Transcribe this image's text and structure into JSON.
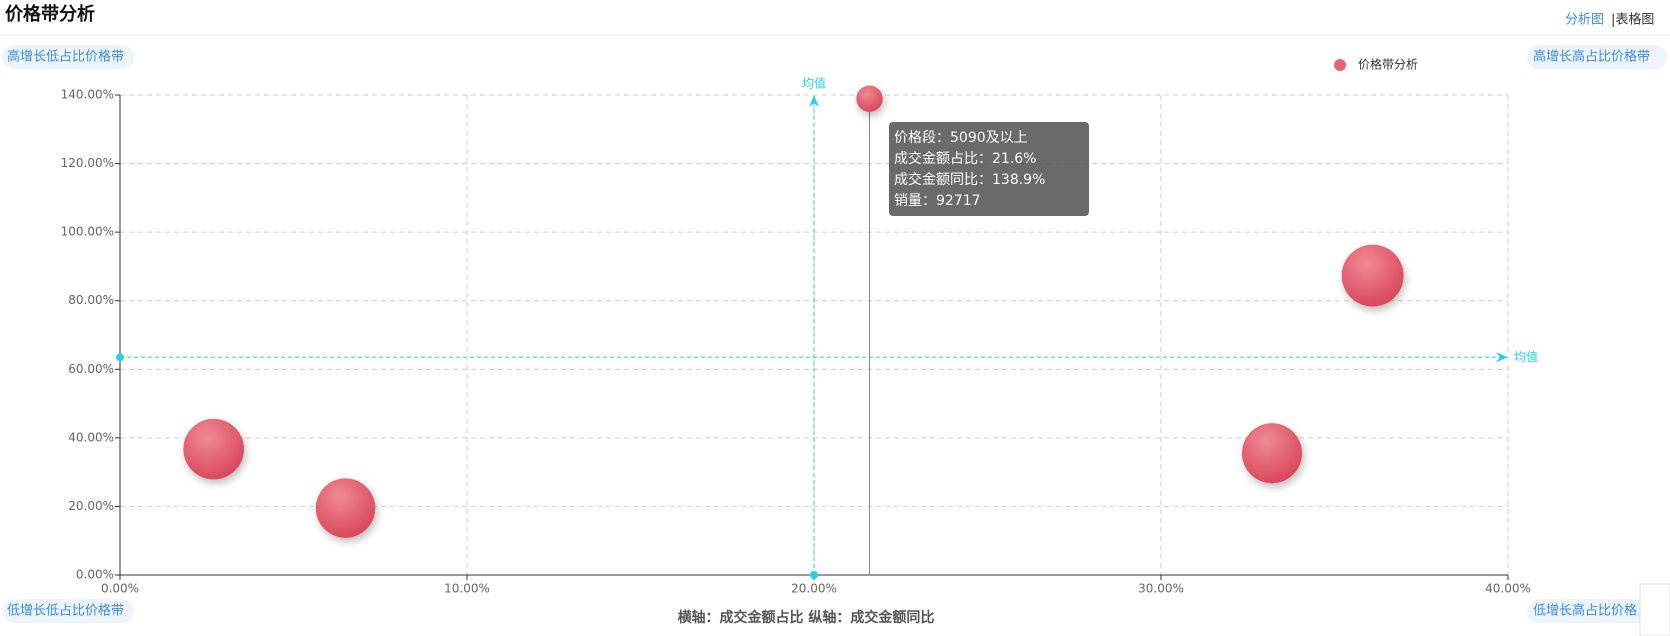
{
  "chart_data": {
    "type": "scatter",
    "title": "价格带分析",
    "tabs": [
      "分析图",
      "|表格图"
    ],
    "corner_labels": {
      "top_left": "高增长低占比价格带",
      "top_right": "高增长高占比价格带",
      "bottom_left": "低增长低占比价格带",
      "bottom_right": "低增长高占比价格"
    },
    "axis_caption": "横轴：成交金额占比  纵轴：成交金额同比",
    "series": [
      {
        "name": "价格带分析",
        "color": "#e8636f",
        "x": [
          2.7,
          6.5,
          21.6,
          33.2,
          36.1
        ],
        "values": [
          36.7,
          19.5,
          138.9,
          35.5,
          87.3
        ],
        "sizes": [
          500000,
          480000,
          92717,
          490000,
          520000
        ]
      }
    ],
    "xlim": [
      0,
      40
    ],
    "ylim": [
      0,
      140
    ],
    "xticks": [
      {
        "value": 0,
        "label": "0.00%"
      },
      {
        "value": 10,
        "label": "10.00%"
      },
      {
        "value": 20,
        "label": "20.00%"
      },
      {
        "value": 30,
        "label": "30.00%"
      },
      {
        "value": 40,
        "label": "40.00%"
      }
    ],
    "yticks": [
      {
        "value": 0,
        "label": "0.00%"
      },
      {
        "value": 20,
        "label": "20.00%"
      },
      {
        "value": 40,
        "label": "40.00%"
      },
      {
        "value": 60,
        "label": "60.00%"
      },
      {
        "value": 80,
        "label": "80.00%"
      },
      {
        "value": 100,
        "label": "100.00%"
      },
      {
        "value": 120,
        "label": "120.00%"
      },
      {
        "value": 140,
        "label": "140.00%"
      }
    ],
    "grid": true,
    "mean_label": "均值",
    "x_mean": 20,
    "y_mean": 63.5,
    "mean_color": "#22d3e6",
    "legend_position": "top-right",
    "tooltip": {
      "point": 2,
      "lines": [
        "价格段：5090及以上",
        "成交金额占比：21.6%",
        "成交金额同比：138.9%",
        "销量：92717"
      ]
    }
  }
}
